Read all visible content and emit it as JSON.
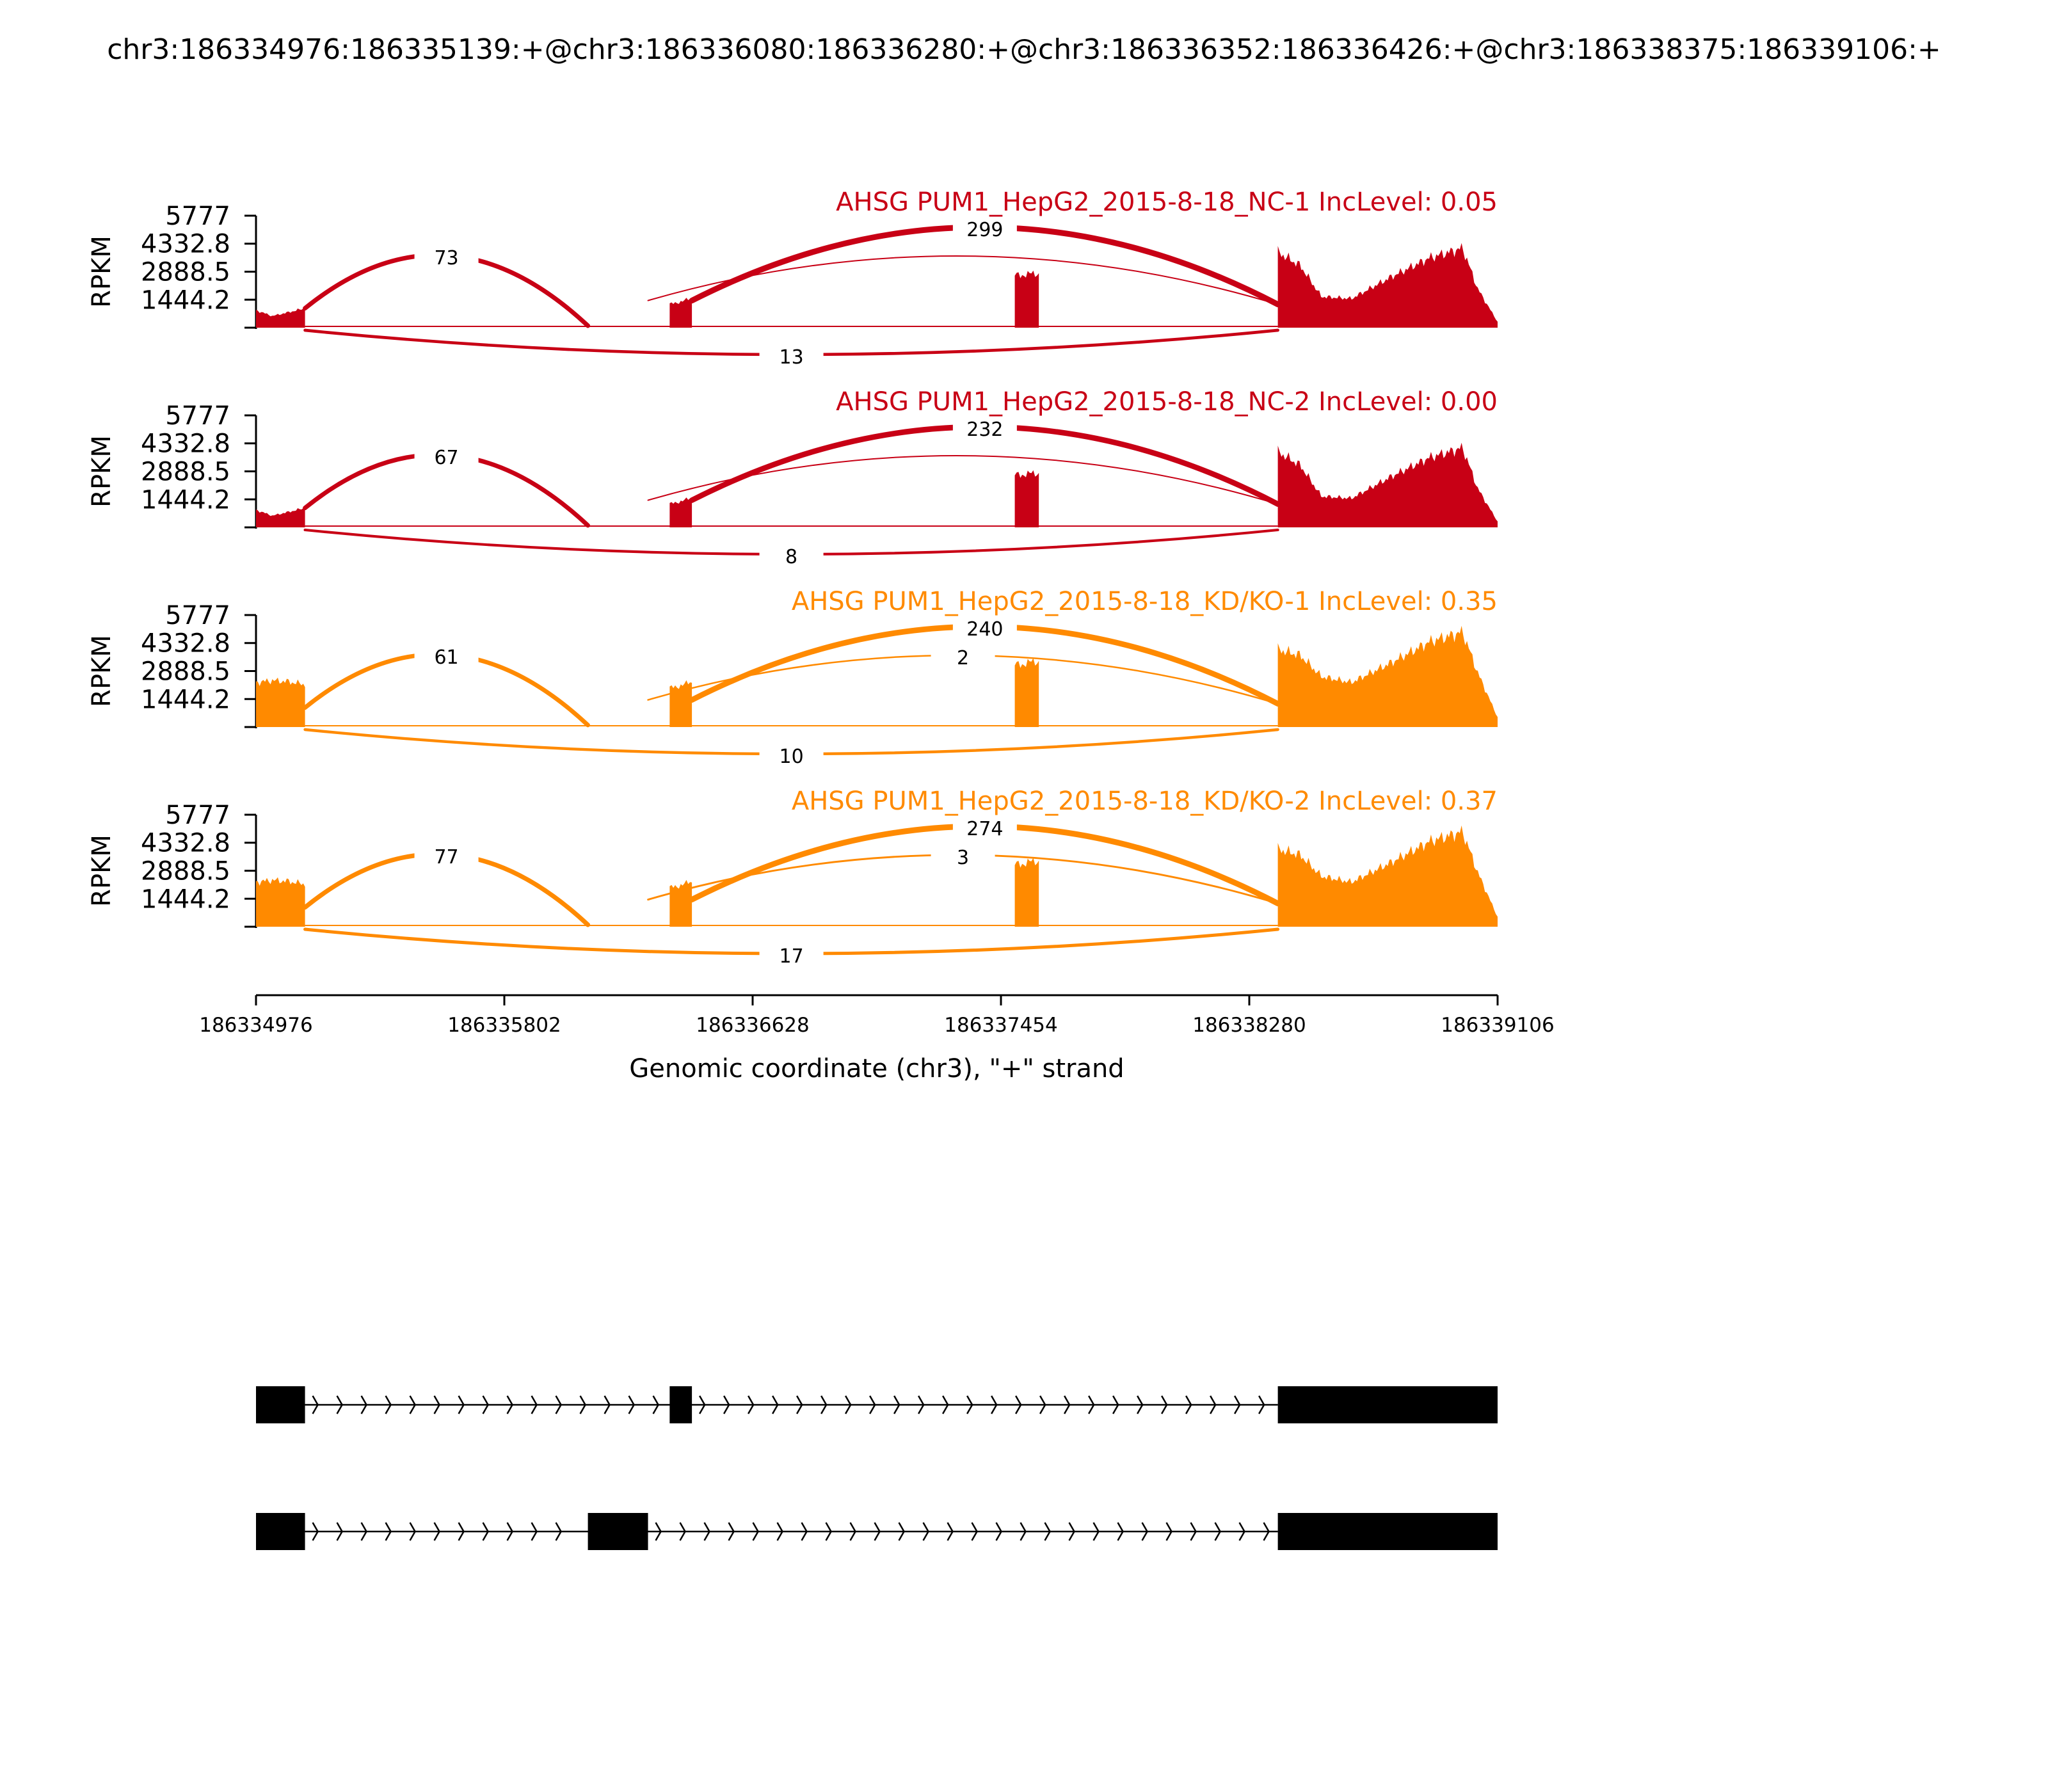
{
  "chart_data": {
    "type": "sashimi",
    "title": "chr3:186334976:186335139:+@chr3:186336080:186336280:+@chr3:186336352:186336426:+@chr3:186338375:186339106:+",
    "xlabel": "Genomic coordinate (chr3), \"+\" strand",
    "ylabel": "RPKM",
    "xlim": [
      186334976,
      186339106
    ],
    "xticks": [
      186334976,
      186335802,
      186336628,
      186337454,
      186338280,
      186339106
    ],
    "xtick_labels": [
      "186334976",
      "186335802",
      "186336628",
      "186337454",
      "186338280",
      "186339106"
    ],
    "ylim": [
      0,
      5777
    ],
    "yticks": [
      1444.2,
      2888.5,
      4332.8,
      5777
    ],
    "ytick_labels": [
      "1444.2",
      "2888.5",
      "4332.8",
      "5777"
    ],
    "exons": [
      {
        "start": 186334976,
        "end": 186335139
      },
      {
        "start": 186336080,
        "end": 186336280
      },
      {
        "start": 186336352,
        "end": 186336426
      },
      {
        "start": 186337500,
        "end": 186337580
      },
      {
        "start": 186338375,
        "end": 186339106
      }
    ],
    "coverage": {
      "NC": [
        [
          186334976,
          900
        ],
        [
          186335030,
          600
        ],
        [
          186335080,
          780
        ],
        [
          186335139,
          1000
        ],
        [
          186336352,
          1200
        ],
        [
          186336426,
          1500
        ],
        [
          186337500,
          2700
        ],
        [
          186337580,
          2800
        ],
        [
          186338375,
          3900
        ],
        [
          186338450,
          3200
        ],
        [
          186338520,
          1600
        ],
        [
          186338620,
          1500
        ],
        [
          186338750,
          2600
        ],
        [
          186338880,
          3600
        ],
        [
          186338990,
          4100
        ],
        [
          186339040,
          2000
        ],
        [
          186339106,
          300
        ]
      ],
      "KD": [
        [
          186334976,
          2300
        ],
        [
          186335030,
          2400
        ],
        [
          186335080,
          2350
        ],
        [
          186335139,
          2200
        ],
        [
          186336352,
          2000
        ],
        [
          186336426,
          2300
        ],
        [
          186337500,
          3200
        ],
        [
          186337580,
          3400
        ],
        [
          186338375,
          4000
        ],
        [
          186338450,
          3700
        ],
        [
          186338520,
          2600
        ],
        [
          186338620,
          2300
        ],
        [
          186338750,
          3300
        ],
        [
          186338880,
          4400
        ],
        [
          186338990,
          4900
        ],
        [
          186339040,
          2800
        ],
        [
          186339106,
          500
        ]
      ]
    },
    "series": [
      {
        "name": "AHSG PUM1_HepG2_2015-8-18_NC-1 IncLevel: 0.05",
        "color": "#c80015",
        "coverage": "NC",
        "junctions": [
          {
            "start": 186335139,
            "end": 186336080,
            "count": "73",
            "above": true
          },
          {
            "start": 186336426,
            "end": 186338375,
            "count": "299",
            "above": true
          },
          {
            "start": 186336280,
            "end": 186338375,
            "count": "",
            "above": true
          },
          {
            "start": 186335139,
            "end": 186338375,
            "count": "13",
            "above": false
          }
        ]
      },
      {
        "name": "AHSG PUM1_HepG2_2015-8-18_NC-2 IncLevel: 0.00",
        "color": "#c80015",
        "coverage": "NC",
        "junctions": [
          {
            "start": 186335139,
            "end": 186336080,
            "count": "67",
            "above": true
          },
          {
            "start": 186336426,
            "end": 186338375,
            "count": "232",
            "above": true
          },
          {
            "start": 186336280,
            "end": 186338375,
            "count": "",
            "above": true
          },
          {
            "start": 186335139,
            "end": 186338375,
            "count": "8",
            "above": false
          }
        ]
      },
      {
        "name": "AHSG PUM1_HepG2_2015-8-18_KD/KO-1 IncLevel: 0.35",
        "color": "#ff8a00",
        "coverage": "KD",
        "junctions": [
          {
            "start": 186335139,
            "end": 186336080,
            "count": "61",
            "above": true
          },
          {
            "start": 186336426,
            "end": 186338375,
            "count": "240",
            "above": true
          },
          {
            "start": 186336280,
            "end": 186338375,
            "count": "2",
            "above": true
          },
          {
            "start": 186335139,
            "end": 186338375,
            "count": "10",
            "above": false
          }
        ]
      },
      {
        "name": "AHSG PUM1_HepG2_2015-8-18_KD/KO-2 IncLevel: 0.37",
        "color": "#ff8a00",
        "coverage": "KD",
        "junctions": [
          {
            "start": 186335139,
            "end": 186336080,
            "count": "77",
            "above": true
          },
          {
            "start": 186336426,
            "end": 186338375,
            "count": "274",
            "above": true
          },
          {
            "start": 186336280,
            "end": 186338375,
            "count": "3",
            "above": true
          },
          {
            "start": 186335139,
            "end": 186338375,
            "count": "17",
            "above": false
          }
        ]
      }
    ],
    "isoforms": [
      {
        "exons": [
          [
            186334976,
            186335139
          ],
          [
            186336352,
            186336426
          ],
          [
            186338375,
            186339106
          ]
        ]
      },
      {
        "exons": [
          [
            186334976,
            186335139
          ],
          [
            186336080,
            186336280
          ],
          [
            186338375,
            186339106
          ]
        ]
      }
    ]
  }
}
